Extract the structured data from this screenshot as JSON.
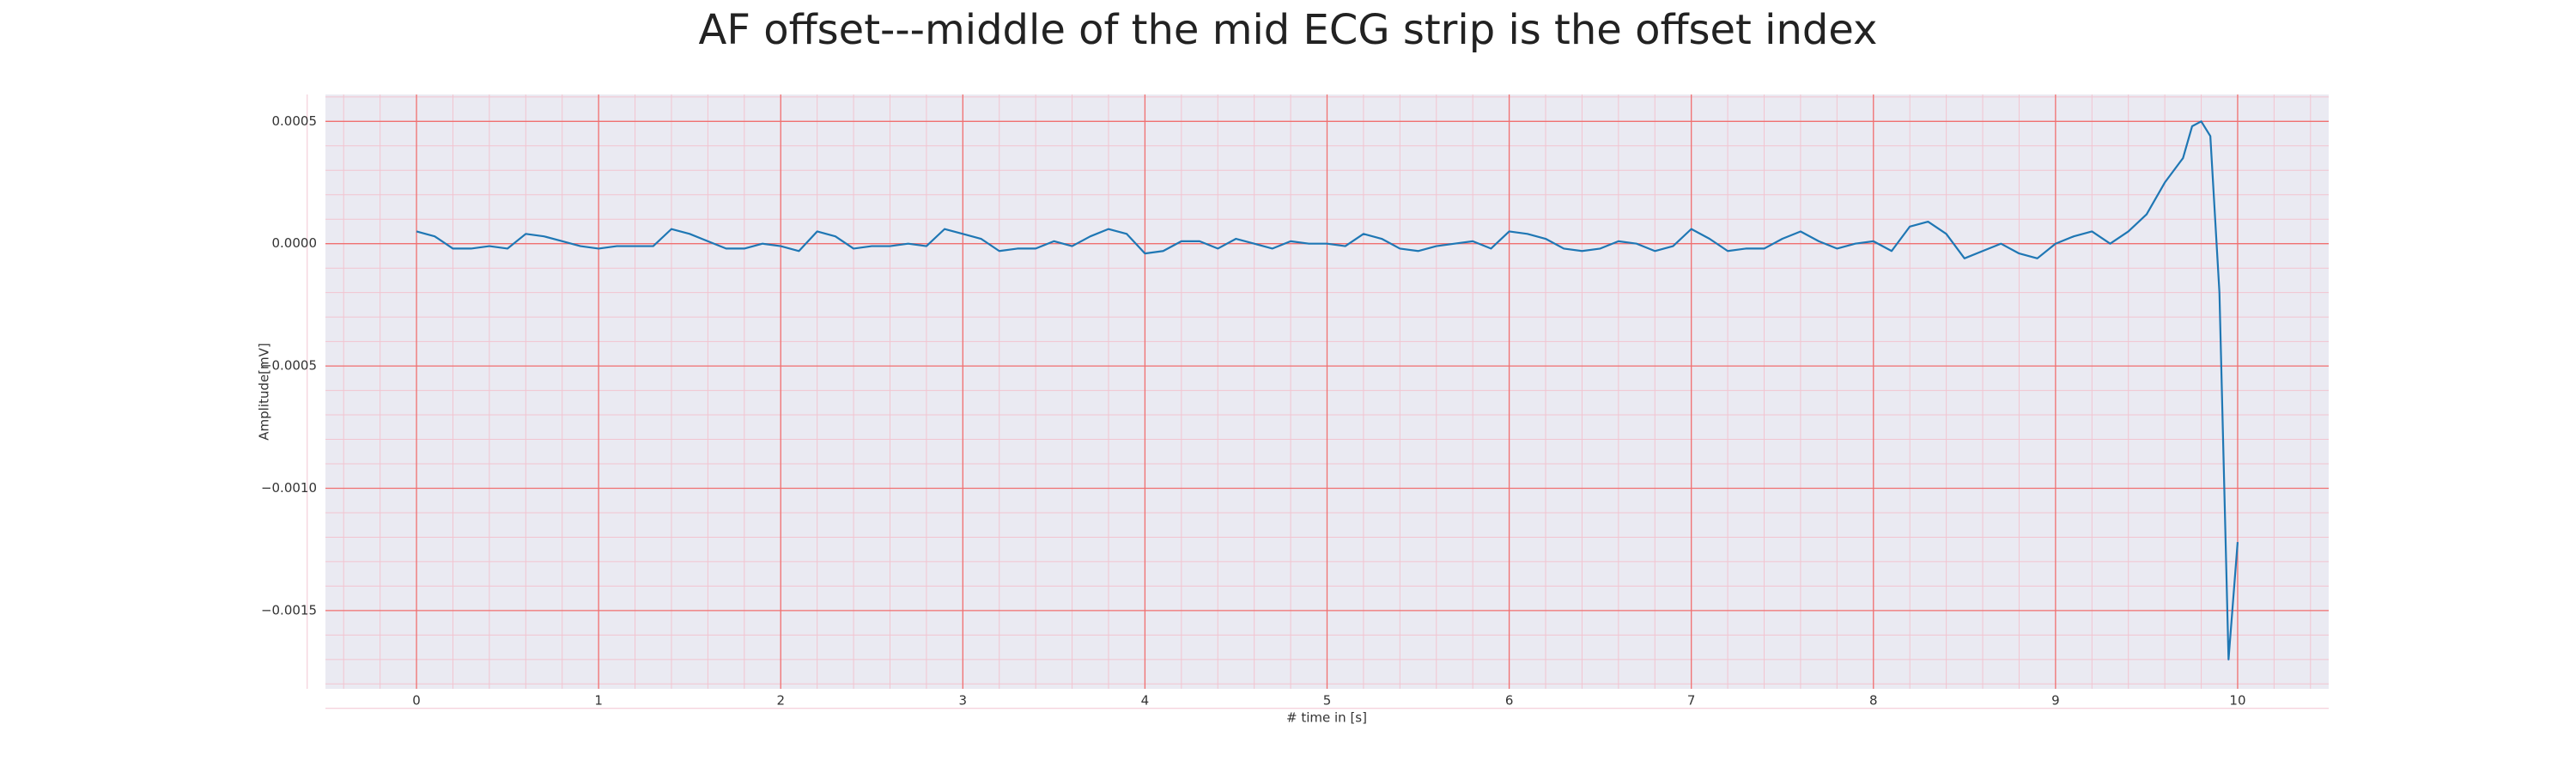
{
  "chart_data": {
    "type": "line",
    "title": "AF offset---middle of the mid ECG strip is the offset index",
    "xlabel": "# time in [s]",
    "ylabel": "Amplitude[mV]",
    "xlim": [
      -0.5,
      10.5
    ],
    "ylim": [
      -0.00182,
      0.00061
    ],
    "xticks": [
      0,
      1,
      2,
      3,
      4,
      5,
      6,
      7,
      8,
      9,
      10
    ],
    "yticks": [
      {
        "value": -0.0015,
        "label": "−0.0015"
      },
      {
        "value": -0.001,
        "label": "−0.0010"
      },
      {
        "value": -0.0005,
        "label": "−0.0005"
      },
      {
        "value": 0,
        "label": "0.0000"
      },
      {
        "value": 0.0005,
        "label": "0.0005"
      }
    ],
    "grid": true,
    "minor_grid": true,
    "grid_color": "#f07070",
    "minor_grid_color": "#f2c4d0",
    "background": "#eaeaf2",
    "series": [
      {
        "color": "#1f77b4",
        "x": [
          0,
          0.1,
          0.2,
          0.3,
          0.4,
          0.5,
          0.6,
          0.7,
          0.8,
          0.9,
          1.0,
          1.1,
          1.2,
          1.3,
          1.4,
          1.5,
          1.6,
          1.7,
          1.8,
          1.9,
          2.0,
          2.1,
          2.2,
          2.3,
          2.4,
          2.5,
          2.6,
          2.7,
          2.8,
          2.9,
          3.0,
          3.1,
          3.2,
          3.3,
          3.4,
          3.5,
          3.6,
          3.7,
          3.8,
          3.9,
          4.0,
          4.1,
          4.2,
          4.3,
          4.4,
          4.5,
          4.6,
          4.7,
          4.8,
          4.9,
          5.0,
          5.1,
          5.2,
          5.3,
          5.4,
          5.5,
          5.6,
          5.7,
          5.8,
          5.9,
          6.0,
          6.1,
          6.2,
          6.3,
          6.4,
          6.5,
          6.6,
          6.7,
          6.8,
          6.9,
          7.0,
          7.1,
          7.2,
          7.3,
          7.4,
          7.5,
          7.6,
          7.7,
          7.8,
          7.9,
          8.0,
          8.1,
          8.2,
          8.3,
          8.4,
          8.5,
          8.6,
          8.7,
          8.8,
          8.9,
          9.0,
          9.1,
          9.2,
          9.3,
          9.4,
          9.5,
          9.6,
          9.7,
          9.75,
          9.8,
          9.85,
          9.9,
          9.95,
          10.0
        ],
        "values": [
          5e-05,
          3e-05,
          -2e-05,
          -2e-05,
          -1e-05,
          -2e-05,
          4e-05,
          3e-05,
          1e-05,
          -1e-05,
          -2e-05,
          -1e-05,
          -1e-05,
          -1e-05,
          6e-05,
          4e-05,
          1e-05,
          -2e-05,
          -2e-05,
          0,
          -1e-05,
          -3e-05,
          5e-05,
          3e-05,
          -2e-05,
          -1e-05,
          -1e-05,
          0,
          -1e-05,
          6e-05,
          4e-05,
          2e-05,
          -3e-05,
          -2e-05,
          -2e-05,
          1e-05,
          -1e-05,
          3e-05,
          6e-05,
          4e-05,
          -4e-05,
          -3e-05,
          1e-05,
          1e-05,
          -2e-05,
          2e-05,
          0,
          -2e-05,
          1e-05,
          0,
          0,
          -1e-05,
          4e-05,
          2e-05,
          -2e-05,
          -3e-05,
          -1e-05,
          0,
          1e-05,
          -2e-05,
          5e-05,
          4e-05,
          2e-05,
          -2e-05,
          -3e-05,
          -2e-05,
          1e-05,
          0,
          -3e-05,
          -1e-05,
          6e-05,
          2e-05,
          -3e-05,
          -2e-05,
          -2e-05,
          2e-05,
          5e-05,
          1e-05,
          -2e-05,
          0,
          1e-05,
          -3e-05,
          7e-05,
          9e-05,
          4e-05,
          -6e-05,
          -3e-05,
          0,
          -4e-05,
          -6e-05,
          0,
          3e-05,
          5e-05,
          0,
          5e-05,
          0.00012,
          0.00025,
          0.00035,
          0.00048,
          0.0005,
          0.00044,
          -0.0002,
          -0.0017,
          -0.00122
        ]
      }
    ]
  }
}
